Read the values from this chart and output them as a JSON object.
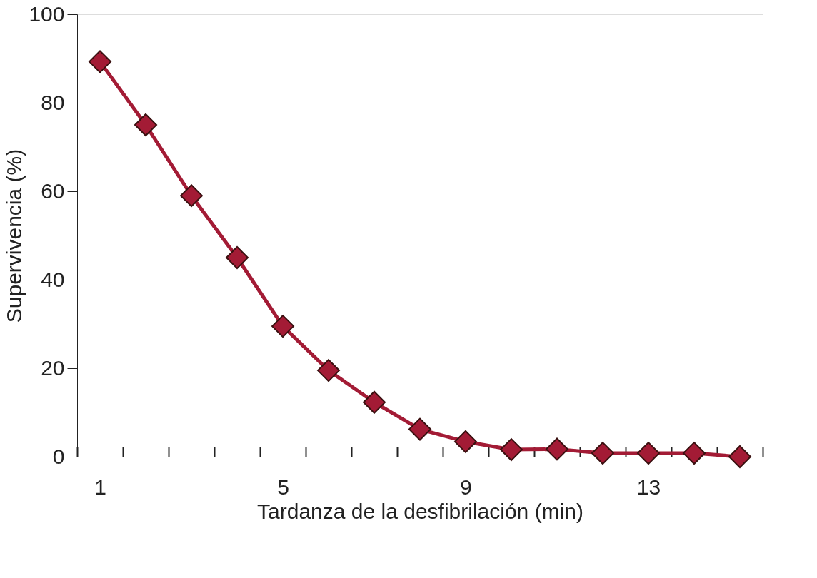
{
  "chart_data": {
    "type": "line",
    "xlabel": "Tardanza de la desfibrilación (min)",
    "ylabel": "Supervivencia (%)",
    "x": [
      1,
      2,
      3,
      4,
      5,
      6,
      7,
      8,
      9,
      10,
      11,
      12,
      13,
      14,
      15
    ],
    "series": [
      {
        "color": "#a31b35",
        "values": [
          89.3,
          75,
          59,
          45,
          29.5,
          19.5,
          12.3,
          6.2,
          3.4,
          1.6,
          1.7,
          0.8,
          0.8,
          0.8,
          0
        ]
      }
    ],
    "xlim": [
      0.5,
      15.5
    ],
    "ylim": [
      0,
      100
    ],
    "xticks": [
      {
        "value": 0.5,
        "label": null
      },
      1,
      {
        "value": 1.5,
        "label": null
      },
      {
        "value": 2.5,
        "label": null
      },
      {
        "value": 3.5,
        "label": null
      },
      {
        "value": 4.5,
        "label": null
      },
      5,
      {
        "value": 5.5,
        "label": null
      },
      {
        "value": 6.5,
        "label": null
      },
      {
        "value": 7.5,
        "label": null
      },
      {
        "value": 8.5,
        "label": null
      },
      9,
      {
        "value": 9.5,
        "label": null
      },
      {
        "value": 10.5,
        "label": null
      },
      {
        "value": 11.5,
        "label": null
      },
      {
        "value": 12.5,
        "label": null
      },
      13,
      {
        "value": 13.5,
        "label": null
      },
      {
        "value": 14.5,
        "label": null
      },
      {
        "value": 15.5,
        "label": null
      }
    ],
    "yticks": [
      0,
      20,
      40,
      60,
      80,
      100
    ],
    "grid": false,
    "marker": "diamond",
    "line_style": "solid"
  }
}
